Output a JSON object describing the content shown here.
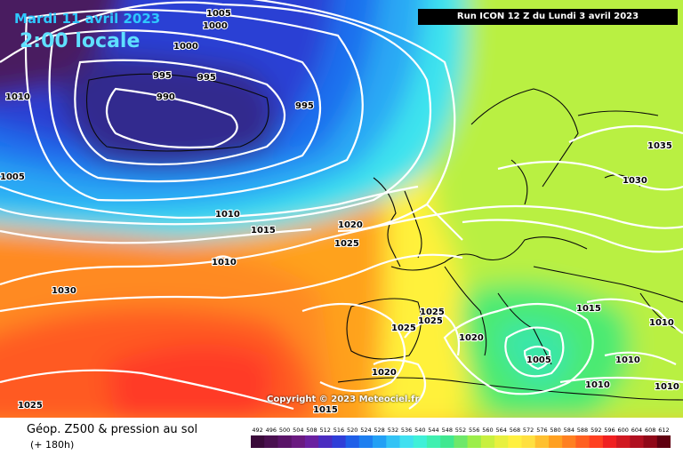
{
  "header": {
    "date": "Mardi 11 avril 2023",
    "time": "2:00 locale",
    "run": "Run ICON 12 Z du Lundi 3 avril 2023"
  },
  "copyright": "Copyright © 2023 Meteociel.fr",
  "footer": {
    "title": "Géop. Z500 & pression au sol",
    "subtitle": "(+ 180h)"
  },
  "scale": {
    "labels": [
      "492",
      "496",
      "500",
      "504",
      "508",
      "512",
      "516",
      "520",
      "524",
      "528",
      "532",
      "536",
      "540",
      "544",
      "548",
      "552",
      "556",
      "560",
      "564",
      "568",
      "572",
      "576",
      "580",
      "584",
      "588",
      "592",
      "596",
      "600",
      "604",
      "608",
      "612"
    ],
    "colors": [
      "#3a0a3a",
      "#4a1050",
      "#5a1468",
      "#6a1a80",
      "#6a20a0",
      "#4a2cc0",
      "#2f3ed8",
      "#1f5fe8",
      "#1e7ff0",
      "#23a0f5",
      "#33c3f5",
      "#40e0f0",
      "#40f0d8",
      "#40f0b0",
      "#40e890",
      "#6ee86a",
      "#9cee4a",
      "#c8f040",
      "#e8f040",
      "#fff040",
      "#ffe040",
      "#ffc030",
      "#ffa020",
      "#ff8020",
      "#ff6020",
      "#ff4020",
      "#f02020",
      "#d01820",
      "#b01020",
      "#900818",
      "#600010"
    ]
  },
  "isobar_labels": [
    "1005",
    "1000",
    "1000",
    "1010",
    "995",
    "995",
    "990",
    "995",
    "1010",
    "1015",
    "1005",
    "1010",
    "1030",
    "1020",
    "1025",
    "1025",
    "1025",
    "1025",
    "1020",
    "1020",
    "1035",
    "1030",
    "1015",
    "1010",
    "1005",
    "1010",
    "1010",
    "1010",
    "1025",
    "1015"
  ]
}
